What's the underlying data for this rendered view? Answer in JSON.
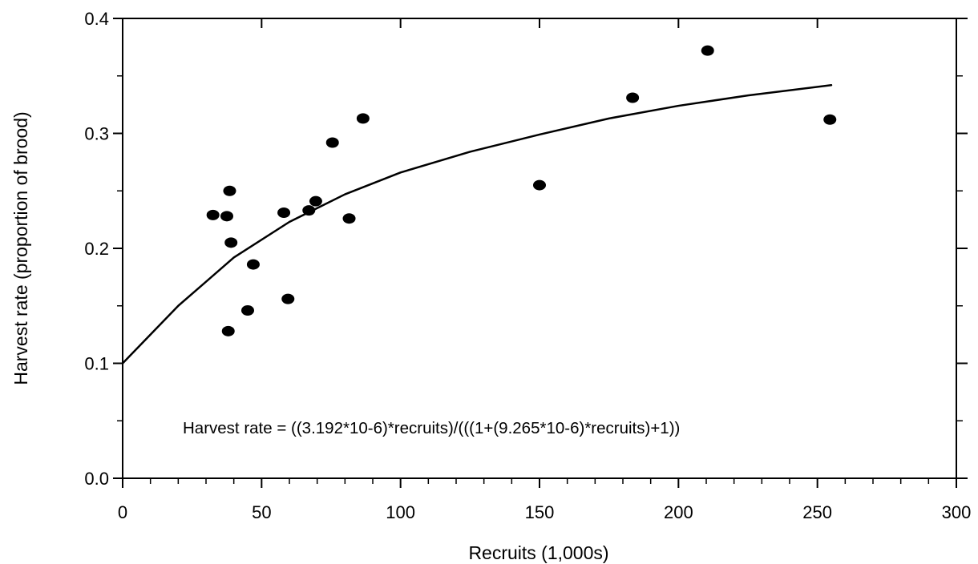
{
  "chart_data": {
    "type": "scatter",
    "title": "",
    "xlabel": "Recruits (1,000s)",
    "ylabel": "Harvest rate (proportion of brood)",
    "xlim": [
      0,
      300
    ],
    "ylim": [
      0.0,
      0.4
    ],
    "x_ticks": [
      0,
      50,
      100,
      150,
      200,
      250,
      300
    ],
    "x_tick_labels": [
      "0",
      "50",
      "100",
      "150",
      "200",
      "250",
      "300"
    ],
    "y_ticks": [
      0.0,
      0.1,
      0.2,
      0.3,
      0.4
    ],
    "y_tick_labels": [
      "0.0",
      "0.1",
      "0.2",
      "0.3",
      "0.4"
    ],
    "x_minor_step": 10,
    "y_minor_step": 0.05,
    "grid": false,
    "points": [
      {
        "x": 32.5,
        "y": 0.229
      },
      {
        "x": 37.5,
        "y": 0.228
      },
      {
        "x": 38.5,
        "y": 0.25
      },
      {
        "x": 39,
        "y": 0.205
      },
      {
        "x": 38,
        "y": 0.128
      },
      {
        "x": 45,
        "y": 0.146
      },
      {
        "x": 47,
        "y": 0.186
      },
      {
        "x": 58,
        "y": 0.231
      },
      {
        "x": 59.5,
        "y": 0.156
      },
      {
        "x": 67,
        "y": 0.233
      },
      {
        "x": 69.5,
        "y": 0.241
      },
      {
        "x": 75.5,
        "y": 0.292
      },
      {
        "x": 81.5,
        "y": 0.226
      },
      {
        "x": 86.5,
        "y": 0.313
      },
      {
        "x": 150,
        "y": 0.255
      },
      {
        "x": 183.5,
        "y": 0.331
      },
      {
        "x": 210.5,
        "y": 0.372
      },
      {
        "x": 254.5,
        "y": 0.312
      }
    ],
    "fit_curve": {
      "x_range": [
        0,
        255
      ],
      "curve": [
        [
          0,
          0.1
        ],
        [
          20,
          0.15
        ],
        [
          40,
          0.192
        ],
        [
          60,
          0.223
        ],
        [
          80,
          0.247
        ],
        [
          100,
          0.266
        ],
        [
          125,
          0.284
        ],
        [
          150,
          0.299
        ],
        [
          175,
          0.313
        ],
        [
          200,
          0.324
        ],
        [
          225,
          0.333
        ],
        [
          255,
          0.342
        ]
      ]
    },
    "annotation": "Harvest rate = ((3.192*10-6)*recruits)/(((1+(9.265*10-6)*recruits)+1))"
  }
}
